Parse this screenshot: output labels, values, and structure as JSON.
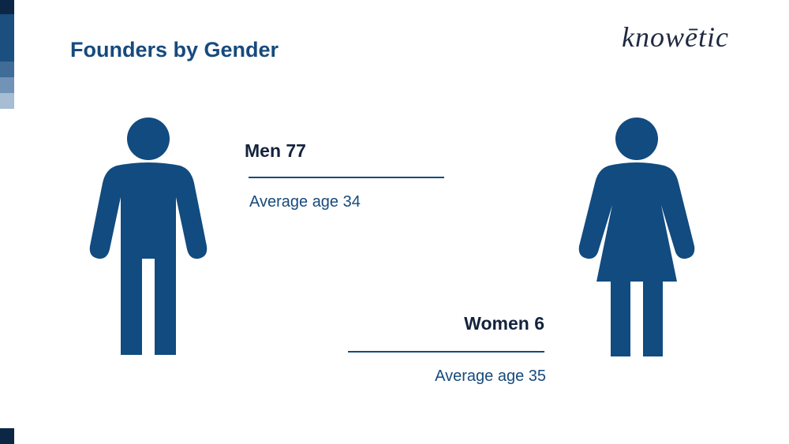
{
  "header": {
    "title": "Founders by Gender",
    "logo": "knowētic"
  },
  "groups": [
    {
      "label": "Men 77",
      "detail": "Average age 34"
    },
    {
      "label": "Women 6",
      "detail": "Average age 35"
    }
  ]
}
